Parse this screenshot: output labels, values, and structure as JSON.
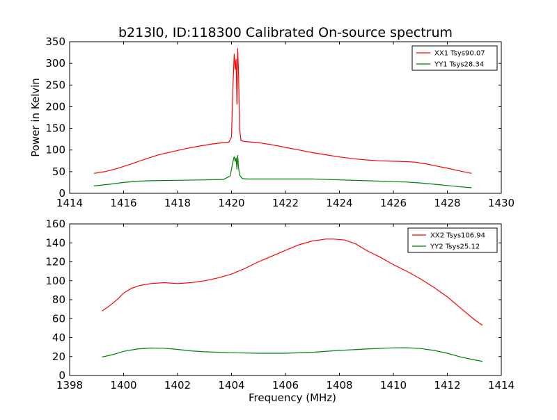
{
  "title": "b213l0, ID:118300 Calibrated On-source spectrum",
  "chart_data": [
    {
      "type": "line",
      "panel": "top",
      "ylabel": "Power in Kelvin",
      "xlabel": "",
      "xlim": [
        1414,
        1430
      ],
      "ylim": [
        0,
        350
      ],
      "xticks": [
        1414,
        1416,
        1418,
        1420,
        1422,
        1424,
        1426,
        1428,
        1430
      ],
      "yticks": [
        0,
        50,
        100,
        150,
        200,
        250,
        300,
        350
      ],
      "legend_position": "top-right",
      "series": [
        {
          "name": "XX1 Tsys90.07",
          "color": "#ff0000",
          "x": [
            1414.9,
            1415.3,
            1415.8,
            1416.3,
            1416.8,
            1417.3,
            1417.8,
            1418.3,
            1418.8,
            1419.3,
            1419.7,
            1419.9,
            1420.0,
            1420.05,
            1420.1,
            1420.14,
            1420.17,
            1420.2,
            1420.23,
            1420.26,
            1420.3,
            1420.35,
            1420.45,
            1420.6,
            1421.0,
            1421.5,
            1422.0,
            1422.5,
            1423.0,
            1423.5,
            1424.0,
            1424.5,
            1425.0,
            1425.5,
            1426.0,
            1426.5,
            1426.8,
            1427.2,
            1427.6,
            1428.0,
            1428.5,
            1428.9
          ],
          "y": [
            46,
            50,
            58,
            68,
            79,
            89,
            96,
            103,
            109,
            114,
            117,
            118,
            130,
            240,
            322,
            285,
            310,
            205,
            335,
            280,
            150,
            122,
            120,
            119,
            117,
            112,
            106,
            100,
            94,
            89,
            84,
            80,
            77,
            75,
            74,
            73,
            72,
            68,
            63,
            58,
            51,
            46
          ]
        },
        {
          "name": "YY1 Tsys28.34",
          "color": "#007f00",
          "x": [
            1414.9,
            1415.5,
            1416.0,
            1416.5,
            1417.0,
            1418.0,
            1419.0,
            1419.7,
            1419.95,
            1420.05,
            1420.1,
            1420.14,
            1420.17,
            1420.2,
            1420.23,
            1420.26,
            1420.3,
            1420.4,
            1420.6,
            1421.0,
            1422.0,
            1423.0,
            1424.0,
            1425.0,
            1426.0,
            1426.5,
            1427.0,
            1427.5,
            1428.0,
            1428.5,
            1428.9
          ],
          "y": [
            17,
            21,
            25,
            28,
            29,
            30,
            31,
            32,
            40,
            72,
            85,
            73,
            82,
            55,
            88,
            60,
            42,
            34,
            33,
            33,
            33,
            33,
            31,
            29,
            27,
            26,
            24,
            21,
            18,
            15,
            13
          ]
        }
      ]
    },
    {
      "type": "line",
      "panel": "bottom",
      "xlabel": "Frequency (MHz)",
      "ylabel": "",
      "xlim": [
        1398,
        1414
      ],
      "ylim": [
        0,
        160
      ],
      "xticks": [
        1398,
        1400,
        1402,
        1404,
        1406,
        1408,
        1410,
        1412,
        1414
      ],
      "yticks": [
        0,
        20,
        40,
        60,
        80,
        100,
        120,
        140,
        160
      ],
      "legend_position": "top-right",
      "series": [
        {
          "name": "XX2 Tsys106.94",
          "color": "#ff0000",
          "x": [
            1399.2,
            1399.5,
            1399.8,
            1400.0,
            1400.3,
            1400.6,
            1401.0,
            1401.5,
            1402.0,
            1402.5,
            1403.0,
            1403.5,
            1404.0,
            1404.5,
            1405.0,
            1405.5,
            1406.0,
            1406.5,
            1407.0,
            1407.5,
            1407.8,
            1408.2,
            1408.6,
            1409.0,
            1409.5,
            1410.0,
            1410.5,
            1411.0,
            1411.5,
            1412.0,
            1412.5,
            1413.0,
            1413.3
          ],
          "y": [
            68,
            74,
            81,
            87,
            92,
            95,
            97,
            98,
            97,
            98,
            100,
            103,
            107,
            113,
            120,
            126,
            132,
            138,
            142,
            144,
            144,
            143,
            139,
            132,
            125,
            117,
            110,
            102,
            93,
            83,
            71,
            59,
            53
          ]
        },
        {
          "name": "YY2 Tsys25.12",
          "color": "#007f00",
          "x": [
            1399.2,
            1399.6,
            1400.0,
            1400.5,
            1401.0,
            1401.5,
            1402.0,
            1402.5,
            1403.0,
            1404.0,
            1405.0,
            1406.0,
            1407.0,
            1408.0,
            1409.0,
            1410.0,
            1410.5,
            1411.0,
            1411.5,
            1412.0,
            1412.5,
            1413.0,
            1413.3
          ],
          "y": [
            19.5,
            22,
            25.5,
            28,
            29,
            28.8,
            27.5,
            26,
            25,
            24,
            23.5,
            23.5,
            24.5,
            26.5,
            28,
            29.2,
            29.3,
            28.5,
            26.5,
            23.5,
            19.5,
            16.5,
            15
          ]
        }
      ]
    }
  ]
}
